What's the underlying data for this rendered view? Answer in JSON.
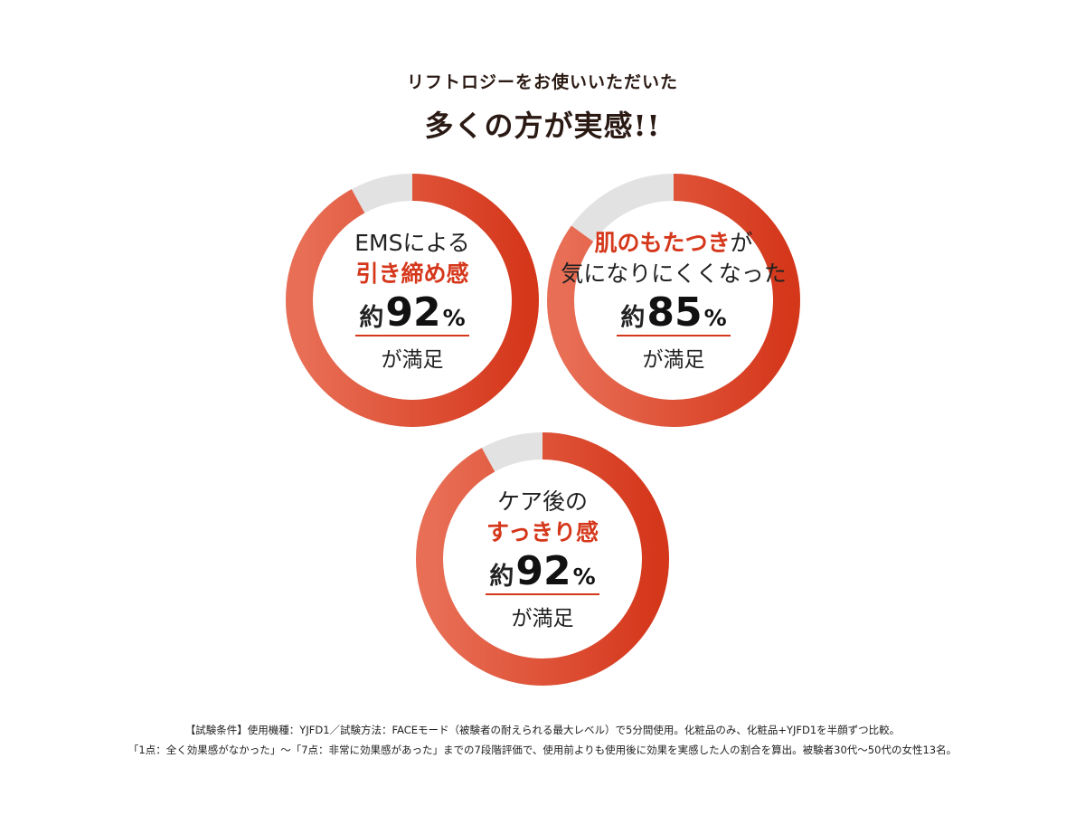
{
  "header": {
    "eyebrow": "リフトロジーをお使いいただいた",
    "headline": "多くの方が実感!!"
  },
  "colors": {
    "accent": "#d5371b",
    "track": "#e2e2e2"
  },
  "chart_data": [
    {
      "type": "pie",
      "title": "EMSによる引き締め感",
      "line1_plain": "EMSによる",
      "line1_emph": "",
      "line2": "引き締め感",
      "line2_emph": true,
      "approx": "約",
      "value": 92,
      "value_text": "92",
      "unit": "%",
      "satisfied": "が満足"
    },
    {
      "type": "pie",
      "title": "肌のもたつきが気になりにくくなった",
      "line1_plain": "が",
      "line1_emph": "肌のもたつき",
      "line2": "気になりにくくなった",
      "line2_emph": false,
      "approx": "約",
      "value": 85,
      "value_text": "85",
      "unit": "%",
      "satisfied": "が満足"
    },
    {
      "type": "pie",
      "title": "ケア後のすっきり感",
      "line1_plain": "ケア後の",
      "line1_emph": "",
      "line2": "すっきり感",
      "line2_emph": true,
      "approx": "約",
      "value": 92,
      "value_text": "92",
      "unit": "%",
      "satisfied": "が満足"
    }
  ],
  "notes": {
    "line1": "【試験条件】使用機種：YJFD1／試験方法：FACEモード（被験者の耐えられる最大レベル）で5分間使用。化粧品のみ、化粧品+YJFD1を半顔ずつ比較。",
    "line2": "「1点：全く効果感がなかった」～「7点：非常に効果感があった」までの7段階評価で、使用前よりも使用後に効果を実感した人の割合を算出。被験者30代～50代の女性13名。"
  }
}
